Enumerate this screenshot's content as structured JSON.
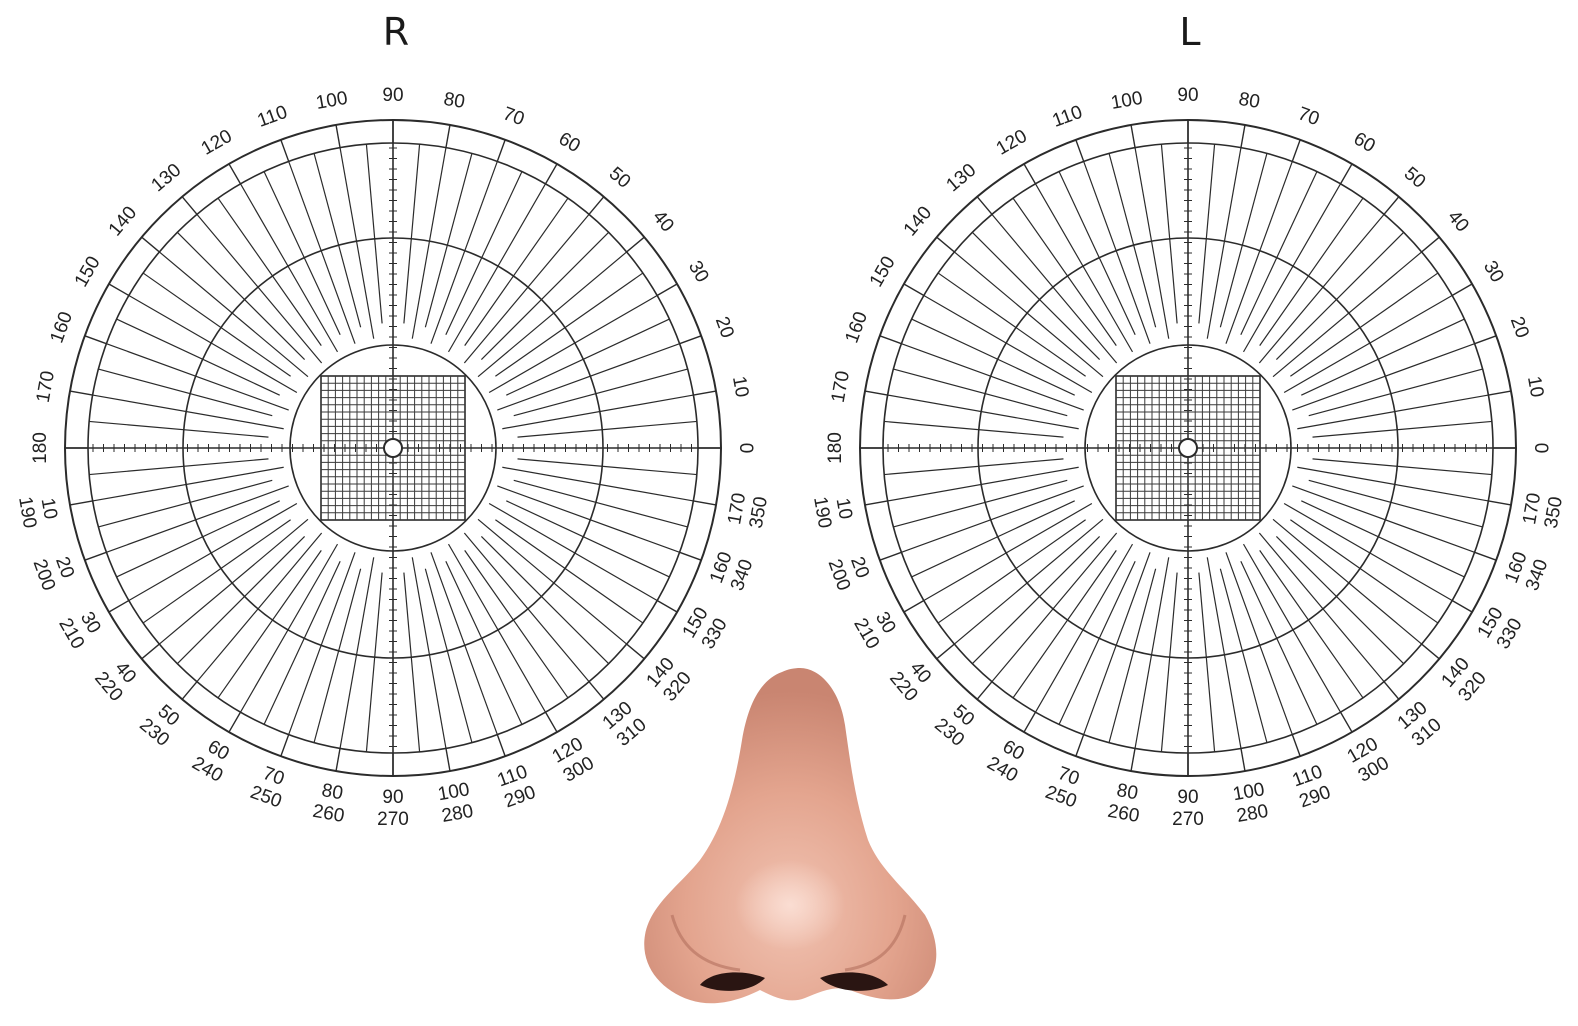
{
  "eyes": [
    {
      "id": "right",
      "label": "R",
      "outer_labels": [
        "0",
        "10",
        "20",
        "30",
        "40",
        "50",
        "60",
        "70",
        "80",
        "90",
        "100",
        "110",
        "120",
        "130",
        "140",
        "150",
        "160",
        "170",
        "180"
      ],
      "lower_inner_labels": [
        "10",
        "20",
        "30",
        "40",
        "50",
        "60",
        "70",
        "80",
        "90",
        "100",
        "110",
        "120",
        "130",
        "140",
        "150",
        "160",
        "170"
      ],
      "lower_outer_labels": [
        "190",
        "200",
        "210",
        "220",
        "230",
        "240",
        "250",
        "260",
        "270",
        "280",
        "290",
        "300",
        "310",
        "320",
        "330",
        "340",
        "350"
      ]
    },
    {
      "id": "left",
      "label": "L",
      "outer_labels": [
        "0",
        "10",
        "20",
        "30",
        "40",
        "50",
        "60",
        "70",
        "80",
        "90",
        "100",
        "110",
        "120",
        "130",
        "140",
        "150",
        "160",
        "170",
        "180"
      ],
      "lower_inner_labels": [
        "10",
        "20",
        "30",
        "40",
        "50",
        "60",
        "70",
        "80",
        "90",
        "100",
        "110",
        "120",
        "130",
        "140",
        "150",
        "160",
        "170"
      ],
      "lower_outer_labels": [
        "190",
        "200",
        "210",
        "220",
        "230",
        "240",
        "250",
        "260",
        "270",
        "280",
        "290",
        "300",
        "310",
        "320",
        "330",
        "340",
        "350"
      ]
    }
  ],
  "nose": {
    "icon": "nose-illustration",
    "skin_color": "#e6a58f",
    "shadow_color": "#b3705e",
    "nostril_color": "#2a1512"
  }
}
